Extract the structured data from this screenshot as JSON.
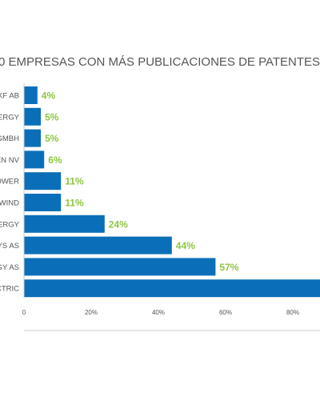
{
  "chart_data": {
    "type": "bar",
    "orientation": "horizontal",
    "title": "0 EMPRESAS CON MÁS PUBLICACIONES DE PATENTES (",
    "categories": [
      "KF AB",
      "IERGY",
      "GMBH",
      "EN NV",
      "OWER",
      "WIND",
      "IERGY",
      "YS AS",
      "GY AS",
      "CTRIC"
    ],
    "values": [
      4,
      5,
      5,
      6,
      11,
      11,
      24,
      44,
      57,
      100
    ],
    "data_labels": [
      "4%",
      "5%",
      "5%",
      "6%",
      "11%",
      "11%",
      "24%",
      "44%",
      "57%",
      ""
    ],
    "x_ticks": [
      "0",
      "20%",
      "40%",
      "60%",
      "80%"
    ],
    "xlim": [
      0,
      100
    ],
    "grid": false,
    "legend": "none",
    "colors": {
      "bar": "#0a6fb8",
      "data_label": "#8dc63f",
      "text": "#555555",
      "axis": "#cccccc"
    }
  }
}
